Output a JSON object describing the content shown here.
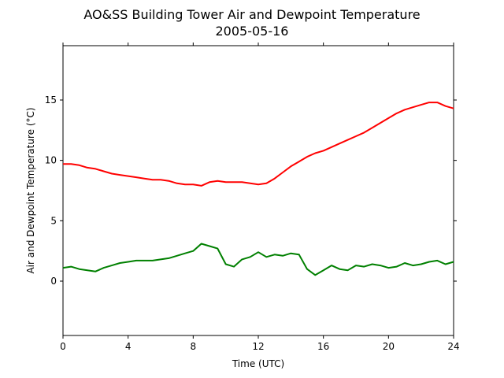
{
  "chart_data": {
    "type": "line",
    "title": "AO&SS Building Tower Air and Dewpoint Temperature",
    "subtitle": "2005-05-16",
    "xlabel": "Time (UTC)",
    "ylabel": "Air and Dewpoint Temperature (°C)",
    "xlim": [
      0,
      24
    ],
    "ylim": [
      -4.5,
      19.5
    ],
    "xticks": [
      0,
      4,
      8,
      12,
      16,
      20,
      24
    ],
    "yticks": [
      0,
      5,
      10,
      15
    ],
    "grid": false,
    "legend": "none",
    "series": [
      {
        "color": "#ff0000",
        "x": [
          0,
          0.5,
          1,
          1.5,
          2,
          2.5,
          3,
          3.5,
          4,
          4.5,
          5,
          5.5,
          6,
          6.5,
          7,
          7.5,
          8,
          8.5,
          9,
          9.5,
          10,
          10.5,
          11,
          11.5,
          12,
          12.5,
          13,
          13.5,
          14,
          14.5,
          15,
          15.5,
          16,
          16.5,
          17,
          17.5,
          18,
          18.5,
          19,
          19.5,
          20,
          20.5,
          21,
          21.5,
          22,
          22.5,
          23,
          23.5,
          24
        ],
        "y": [
          9.7,
          9.7,
          9.6,
          9.4,
          9.3,
          9.1,
          8.9,
          8.8,
          8.7,
          8.6,
          8.5,
          8.4,
          8.4,
          8.3,
          8.1,
          8.0,
          8.0,
          7.9,
          8.2,
          8.3,
          8.2,
          8.2,
          8.2,
          8.1,
          8.0,
          8.1,
          8.5,
          9.0,
          9.5,
          9.9,
          10.3,
          10.6,
          10.8,
          11.1,
          11.4,
          11.7,
          12.0,
          12.3,
          12.7,
          13.1,
          13.5,
          13.9,
          14.2,
          14.4,
          14.6,
          14.8,
          14.8,
          14.5,
          14.3
        ]
      },
      {
        "color": "#008000",
        "x": [
          0,
          0.5,
          1,
          1.5,
          2,
          2.5,
          3,
          3.5,
          4,
          4.5,
          5,
          5.5,
          6,
          6.5,
          7,
          7.5,
          8,
          8.5,
          9,
          9.5,
          10,
          10.5,
          11,
          11.5,
          12,
          12.5,
          13,
          13.5,
          14,
          14.5,
          15,
          15.5,
          16,
          16.5,
          17,
          17.5,
          18,
          18.5,
          19,
          19.5,
          20,
          20.5,
          21,
          21.5,
          22,
          22.5,
          23,
          23.5,
          24
        ],
        "y": [
          1.1,
          1.2,
          1.0,
          0.9,
          0.8,
          1.1,
          1.3,
          1.5,
          1.6,
          1.7,
          1.7,
          1.7,
          1.8,
          1.9,
          2.1,
          2.3,
          2.5,
          3.1,
          2.9,
          2.7,
          1.4,
          1.2,
          1.8,
          2.0,
          2.4,
          2.0,
          2.2,
          2.1,
          2.3,
          2.2,
          1.0,
          0.5,
          0.9,
          1.3,
          1.0,
          0.9,
          1.3,
          1.2,
          1.4,
          1.3,
          1.1,
          1.2,
          1.5,
          1.3,
          1.4,
          1.6,
          1.7,
          1.4,
          1.6
        ]
      }
    ]
  }
}
